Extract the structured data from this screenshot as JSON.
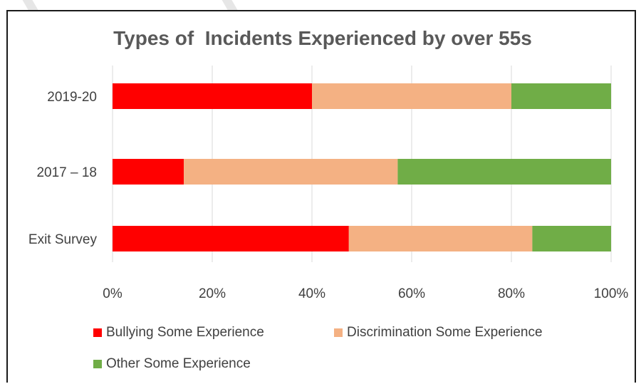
{
  "chart_data": {
    "type": "bar",
    "orientation": "horizontal",
    "stacked": "percent",
    "title": "Types of  Incidents Experienced by over 55s",
    "categories": [
      "2019-20",
      "2017 – 18",
      "Exit Survey"
    ],
    "series": [
      {
        "name": "Bullying Some Experience",
        "color": "#ff0000",
        "values": [
          40,
          14.3,
          47.4
        ]
      },
      {
        "name": "Discrimination Some Experience",
        "color": "#f4b183",
        "values": [
          40,
          42.9,
          36.8
        ]
      },
      {
        "name": "Other Some Experience",
        "color": "#70ad47",
        "values": [
          20,
          42.8,
          15.8
        ]
      }
    ],
    "xlim": [
      0,
      100
    ],
    "x_ticks": [
      "0%",
      "20%",
      "40%",
      "60%",
      "80%",
      "100%"
    ],
    "grid": "vertical",
    "legend_position": "bottom"
  }
}
